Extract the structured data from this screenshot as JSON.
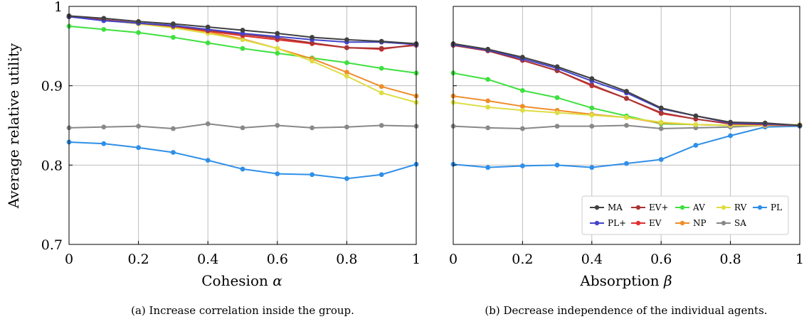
{
  "series_styles": [
    {
      "name": "MA",
      "color": "#404040"
    },
    {
      "name": "EV+",
      "color": "#a83434"
    },
    {
      "name": "AV",
      "color": "#3ee03e"
    },
    {
      "name": "RV",
      "color": "#dddd44"
    },
    {
      "name": "PL",
      "color": "#2f8fe8"
    },
    {
      "name": "PL+",
      "color": "#4444cc"
    },
    {
      "name": "EV",
      "color": "#e03030"
    },
    {
      "name": "NP",
      "color": "#f08c2a"
    },
    {
      "name": "SA",
      "color": "#888888"
    }
  ],
  "legend_layout": {
    "rows": [
      [
        "MA",
        "EV+",
        "AV",
        "RV",
        "PL"
      ],
      [
        "PL+",
        "EV",
        "NP",
        "SA"
      ]
    ],
    "placement": "bottom-right of panel b"
  },
  "chart_data": [
    {
      "type": "line",
      "panel": "a",
      "title": "",
      "xlabel": "Cohesion",
      "xlabel_symbol": "α",
      "ylabel": "Average relative utility",
      "caption": "(a) Increase correlation inside the group.",
      "xlim": [
        0,
        1
      ],
      "ylim": [
        0.7,
        1.0
      ],
      "x_ticks": [
        "0",
        "0.2",
        "0.4",
        "0.6",
        "0.8",
        "1"
      ],
      "y_ticks": [
        "0.7",
        "0.8",
        "0.9",
        "1"
      ],
      "grid": true,
      "x": [
        0,
        0.1,
        0.2,
        0.3,
        0.4,
        0.5,
        0.6,
        0.7,
        0.8,
        0.9,
        1.0
      ],
      "series": [
        {
          "name": "MA",
          "values": [
            0.988,
            0.985,
            0.981,
            0.978,
            0.974,
            0.97,
            0.966,
            0.961,
            0.958,
            0.956,
            0.953
          ]
        },
        {
          "name": "PL+",
          "values": [
            0.987,
            0.982,
            0.979,
            0.976,
            0.971,
            0.966,
            0.962,
            0.958,
            0.955,
            0.955,
            0.952
          ]
        },
        {
          "name": "EV+",
          "values": [
            0.987,
            0.983,
            0.979,
            0.975,
            0.97,
            0.965,
            0.96,
            0.954,
            0.948,
            0.947,
            0.951
          ]
        },
        {
          "name": "EV",
          "values": [
            0.987,
            0.983,
            0.979,
            0.975,
            0.969,
            0.963,
            0.958,
            0.953,
            0.948,
            0.946,
            0.952
          ]
        },
        {
          "name": "AV",
          "values": [
            0.975,
            0.971,
            0.967,
            0.961,
            0.954,
            0.947,
            0.941,
            0.935,
            0.929,
            0.922,
            0.916
          ]
        },
        {
          "name": "NP",
          "values": [
            0.987,
            0.983,
            0.978,
            0.974,
            0.968,
            0.959,
            0.947,
            0.934,
            0.917,
            0.899,
            0.887
          ]
        },
        {
          "name": "RV",
          "values": [
            0.988,
            0.983,
            0.978,
            0.973,
            0.966,
            0.958,
            0.947,
            0.931,
            0.912,
            0.891,
            0.879
          ]
        },
        {
          "name": "SA",
          "values": [
            0.847,
            0.848,
            0.849,
            0.846,
            0.852,
            0.847,
            0.85,
            0.847,
            0.848,
            0.85,
            0.849
          ]
        },
        {
          "name": "PL",
          "values": [
            0.829,
            0.827,
            0.822,
            0.816,
            0.806,
            0.795,
            0.789,
            0.788,
            0.783,
            0.788,
            0.801
          ]
        }
      ]
    },
    {
      "type": "line",
      "panel": "b",
      "title": "",
      "xlabel": "Absorption",
      "xlabel_symbol": "β",
      "ylabel": "",
      "caption": "(b) Decrease independence of the individual agents.",
      "xlim": [
        0,
        1
      ],
      "ylim": [
        0.7,
        1.0
      ],
      "x_ticks": [
        "0",
        "0.2",
        "0.4",
        "0.6",
        "0.8",
        "1"
      ],
      "y_ticks": [],
      "grid": true,
      "legend": "bottom-right",
      "x": [
        0,
        0.1,
        0.2,
        0.3,
        0.4,
        0.5,
        0.6,
        0.7,
        0.8,
        0.9,
        1.0
      ],
      "series": [
        {
          "name": "MA",
          "values": [
            0.953,
            0.946,
            0.936,
            0.924,
            0.909,
            0.893,
            0.872,
            0.862,
            0.854,
            0.853,
            0.85
          ]
        },
        {
          "name": "PL+",
          "values": [
            0.952,
            0.945,
            0.934,
            0.922,
            0.906,
            0.891,
            0.871,
            0.862,
            0.853,
            0.852,
            0.85
          ]
        },
        {
          "name": "EV+",
          "values": [
            0.951,
            0.944,
            0.932,
            0.919,
            0.901,
            0.884,
            0.866,
            0.858,
            0.852,
            0.852,
            0.85
          ]
        },
        {
          "name": "EV",
          "values": [
            0.951,
            0.944,
            0.932,
            0.919,
            0.9,
            0.884,
            0.865,
            0.858,
            0.852,
            0.851,
            0.85
          ]
        },
        {
          "name": "AV",
          "values": [
            0.916,
            0.908,
            0.894,
            0.885,
            0.872,
            0.862,
            0.852,
            0.851,
            0.85,
            0.85,
            0.85
          ]
        },
        {
          "name": "NP",
          "values": [
            0.887,
            0.881,
            0.874,
            0.869,
            0.864,
            0.86,
            0.853,
            0.851,
            0.85,
            0.85,
            0.85
          ]
        },
        {
          "name": "RV",
          "values": [
            0.879,
            0.873,
            0.869,
            0.866,
            0.863,
            0.86,
            0.854,
            0.851,
            0.85,
            0.85,
            0.851
          ]
        },
        {
          "name": "SA",
          "values": [
            0.849,
            0.847,
            0.846,
            0.849,
            0.849,
            0.85,
            0.846,
            0.847,
            0.848,
            0.85,
            0.85
          ]
        },
        {
          "name": "PL",
          "values": [
            0.801,
            0.797,
            0.799,
            0.8,
            0.797,
            0.802,
            0.807,
            0.825,
            0.837,
            0.848,
            0.849
          ]
        }
      ]
    }
  ]
}
